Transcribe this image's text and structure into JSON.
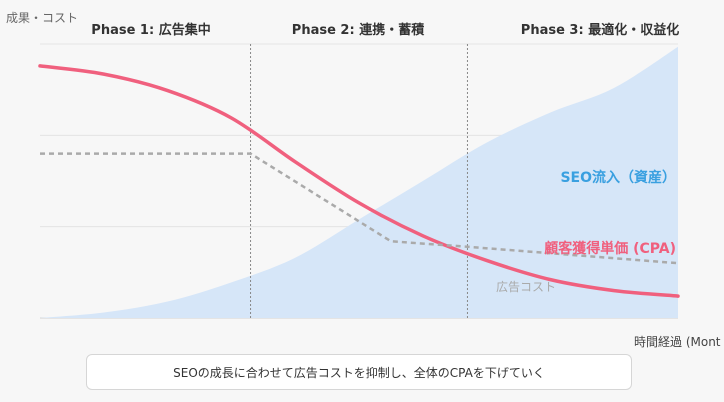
{
  "chart_data": {
    "type": "line",
    "ylabel": "成果・コスト",
    "xlabel": "時間経過 (Mont",
    "phases": [
      {
        "label": "Phase 1: 広告集中"
      },
      {
        "label": "Phase 2: 連携・蓄積"
      },
      {
        "label": "Phase 3: 最適化・収益化"
      }
    ],
    "phase_boundaries": [
      0.33,
      0.67
    ],
    "x_range": [
      0,
      1
    ],
    "y_range": [
      0,
      1
    ],
    "grid": "horizontal",
    "series": [
      {
        "name": "SEO流入（資産）",
        "style": "area",
        "color": "#d6e6f8",
        "label_color": "#3aa0e0",
        "points": [
          [
            0,
            0.0
          ],
          [
            0.1,
            0.02
          ],
          [
            0.2,
            0.06
          ],
          [
            0.3,
            0.13
          ],
          [
            0.4,
            0.22
          ],
          [
            0.5,
            0.36
          ],
          [
            0.6,
            0.5
          ],
          [
            0.7,
            0.64
          ],
          [
            0.8,
            0.75
          ],
          [
            0.9,
            0.84
          ],
          [
            1.0,
            0.99
          ]
        ]
      },
      {
        "name": "顧客獲得単価 (CPA)",
        "style": "solid",
        "color": "#f0607e",
        "label_color": "#f0607e",
        "points": [
          [
            0,
            0.92
          ],
          [
            0.1,
            0.89
          ],
          [
            0.2,
            0.83
          ],
          [
            0.3,
            0.73
          ],
          [
            0.4,
            0.57
          ],
          [
            0.5,
            0.42
          ],
          [
            0.6,
            0.3
          ],
          [
            0.7,
            0.21
          ],
          [
            0.8,
            0.14
          ],
          [
            0.9,
            0.1
          ],
          [
            1.0,
            0.08
          ]
        ]
      },
      {
        "name": "広告コスト",
        "style": "dashed",
        "color": "#aaaaaa",
        "label_color": "#aaaaaa",
        "points": [
          [
            0,
            0.6
          ],
          [
            0.33,
            0.6
          ],
          [
            0.55,
            0.28
          ],
          [
            0.67,
            0.26
          ],
          [
            1.0,
            0.2
          ]
        ]
      }
    ]
  },
  "caption": "SEOの成長に合わせて広告コストを抑制し、全体のCPAを下げていく"
}
